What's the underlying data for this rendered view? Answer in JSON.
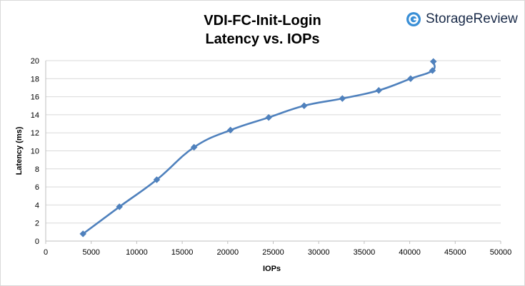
{
  "brand": {
    "name": "StorageReview",
    "accent": "#3a8fd6"
  },
  "chart_data": {
    "type": "line",
    "title": "VDI-FC-Init-Login",
    "subtitle": "Latency vs. IOPs",
    "xlabel": "IOPs",
    "ylabel": "Latency (ms)",
    "xlim": [
      0,
      50000
    ],
    "ylim": [
      0,
      20
    ],
    "xticks": [
      0,
      5000,
      10000,
      15000,
      20000,
      25000,
      30000,
      35000,
      40000,
      45000,
      50000
    ],
    "yticks": [
      0,
      2,
      4,
      6,
      8,
      10,
      12,
      14,
      16,
      18,
      20
    ],
    "grid": true,
    "legend": "none",
    "series": [
      {
        "color": "#4f81bd",
        "marker": "diamond",
        "smooth": true,
        "x": [
          4100,
          8100,
          12200,
          16300,
          20300,
          24500,
          28400,
          32600,
          36600,
          40100,
          42500,
          42600
        ],
        "y": [
          0.8,
          3.8,
          6.8,
          10.4,
          12.3,
          13.7,
          15.0,
          15.8,
          16.7,
          18.0,
          18.9,
          19.9
        ]
      }
    ]
  }
}
